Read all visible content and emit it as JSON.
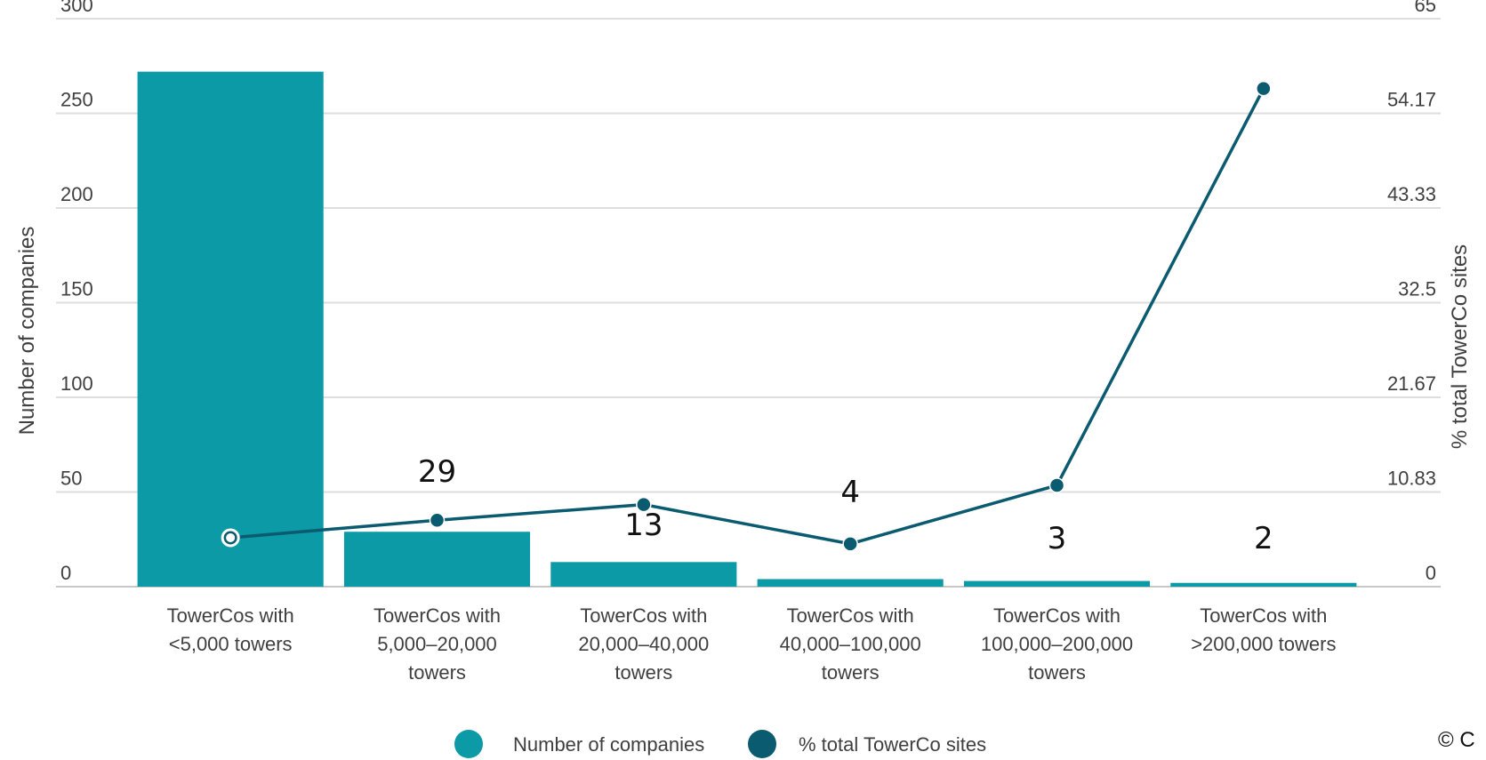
{
  "chart_data": {
    "type": "bar+line",
    "categories": [
      [
        "TowerCos with",
        "<5,000 towers"
      ],
      [
        "TowerCos with",
        "5,000–20,000",
        "towers"
      ],
      [
        "TowerCos with",
        "20,000–40,000",
        "towers"
      ],
      [
        "TowerCos with",
        "40,000–100,000",
        "towers"
      ],
      [
        "TowerCos with",
        "100,000–200,000",
        "towers"
      ],
      [
        "TowerCos with",
        ">200,000 towers"
      ]
    ],
    "series": [
      {
        "name": "Number of companies",
        "type": "bar",
        "axis": "left",
        "values": [
          272,
          29,
          13,
          4,
          3,
          2
        ],
        "color": "#0b9aa6"
      },
      {
        "name": "% total TowerCo sites",
        "type": "line",
        "axis": "right",
        "values": [
          5.6,
          7.6,
          9.4,
          4.9,
          11.6,
          57.0
        ],
        "color": "#0a5a70"
      }
    ],
    "data_labels": [
      "",
      "29",
      "13",
      "4",
      "3",
      "2"
    ],
    "ylabel": "Number of companies",
    "y2label": "% total TowerCo sites",
    "ylim": [
      0,
      300
    ],
    "y2lim": [
      0,
      65
    ],
    "yticks": [
      "0",
      "50",
      "100",
      "150",
      "200",
      "250",
      "300"
    ],
    "y2ticks": [
      "0",
      "10.83",
      "21.67",
      "32.5",
      "43.33",
      "54.17",
      "65"
    ],
    "grid": true,
    "legend_position": "bottom-center",
    "copyright": "© C"
  }
}
